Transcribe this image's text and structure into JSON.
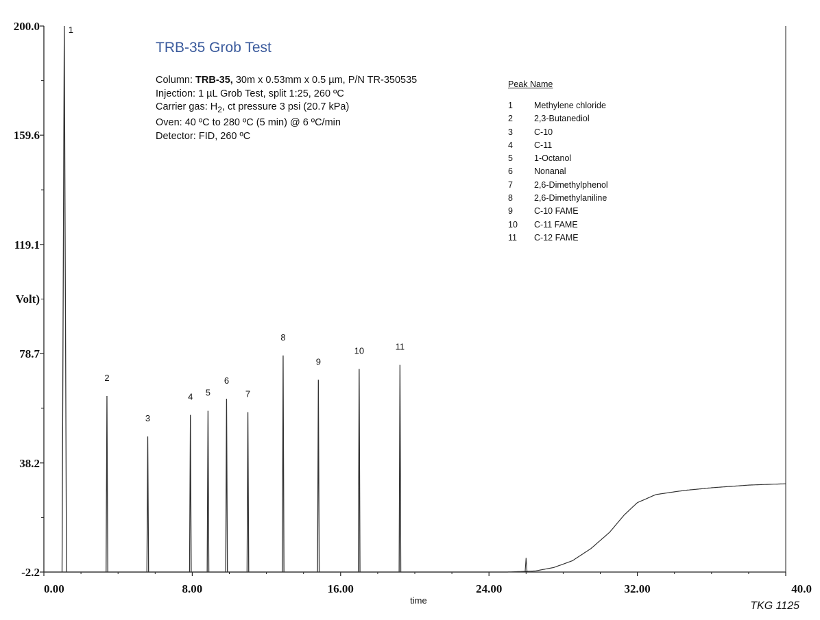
{
  "chart_data": {
    "type": "line",
    "title": "TRB-35 Grob Test",
    "conditions": {
      "column_label": "Column:",
      "column_name": "TRB-35,",
      "column_rest": "30m x 0.53mm x 0.5 µm, P/N TR-350535",
      "injection": "Injection: 1 µL Grob Test, split 1:25, 260 ºC",
      "carrier_pre": "Carrier gas: H",
      "carrier_sub": "2",
      "carrier_post": ", ct pressure 3 psi (20.7 kPa)",
      "oven": "Oven: 40 ºC  to 280 ºC (5 min) @ 6 ºC/min",
      "detector": "Detector: FID, 260 ºC"
    },
    "xlabel": "time",
    "ylabel": "Volt)",
    "xlim": [
      0,
      40
    ],
    "ylim": [
      -2.2,
      200.0
    ],
    "x_ticks": [
      "0.00",
      "8.00",
      "16.00",
      "24.00",
      "32.00",
      "40.0"
    ],
    "y_ticks": [
      "-2.2",
      "38.2",
      "78.7",
      "119.1",
      "159.6",
      "200.0"
    ],
    "legend_title": "Peak Name",
    "peaks": [
      {
        "label": "1",
        "name": "Methylene chloride",
        "rt": 1.1,
        "height": 200.0
      },
      {
        "label": "2",
        "name": "2,3-Butanediol",
        "rt": 3.4,
        "height": 63.0
      },
      {
        "label": "3",
        "name": "C-10",
        "rt": 5.6,
        "height": 48.0
      },
      {
        "label": "4",
        "name": "C-11",
        "rt": 7.9,
        "height": 56.0
      },
      {
        "label": "5",
        "name": "1-Octanol",
        "rt": 8.85,
        "height": 57.5
      },
      {
        "label": "6",
        "name": "Nonanal",
        "rt": 9.85,
        "height": 62.0
      },
      {
        "label": "7",
        "name": "2,6-Dimethylphenol",
        "rt": 11.0,
        "height": 57.0
      },
      {
        "label": "8",
        "name": "2,6-Dimethylaniline",
        "rt": 12.9,
        "height": 78.0
      },
      {
        "label": "9",
        "name": "C-10 FAME",
        "rt": 14.8,
        "height": 69.0
      },
      {
        "label": "10",
        "name": "C-11 FAME",
        "rt": 17.0,
        "height": 73.0
      },
      {
        "label": "11",
        "name": "C-12 FAME",
        "rt": 19.2,
        "height": 74.5
      }
    ],
    "baseline_drift": [
      {
        "x": 0.0,
        "y": -2.2
      },
      {
        "x": 25.0,
        "y": -2.2
      },
      {
        "x": 26.5,
        "y": -1.8
      },
      {
        "x": 27.5,
        "y": -0.5
      },
      {
        "x": 28.5,
        "y": 2.0
      },
      {
        "x": 29.5,
        "y": 6.5
      },
      {
        "x": 30.5,
        "y": 12.5
      },
      {
        "x": 31.3,
        "y": 19.0
      },
      {
        "x": 32.0,
        "y": 23.5
      },
      {
        "x": 33.0,
        "y": 26.5
      },
      {
        "x": 34.5,
        "y": 28.0
      },
      {
        "x": 36.0,
        "y": 29.0
      },
      {
        "x": 38.0,
        "y": 30.0
      },
      {
        "x": 40.0,
        "y": 30.5
      }
    ],
    "artifact_spike": {
      "x": 26.0,
      "height": 5.0
    },
    "colors": {
      "trace": "#333333",
      "axis": "#222222",
      "title": "#3a5a9c"
    },
    "grid": false
  },
  "footer_code": "TKG 1125"
}
